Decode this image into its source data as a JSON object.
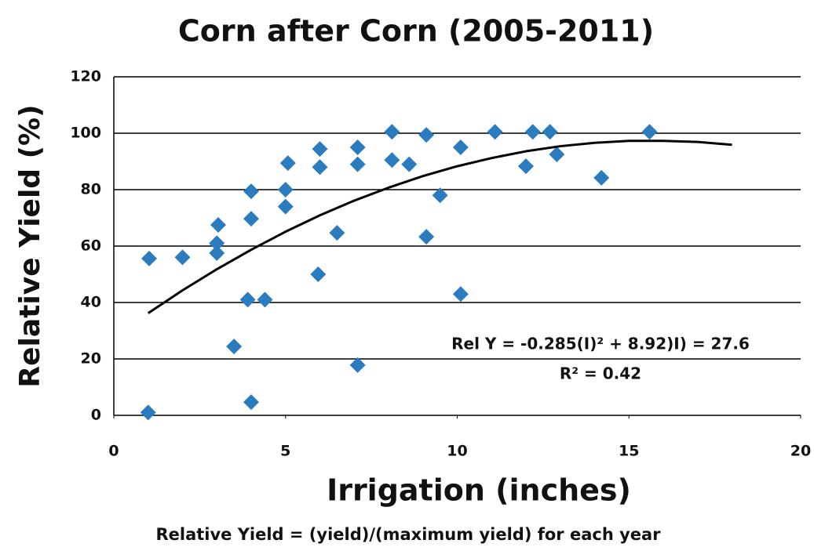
{
  "chart_data": {
    "type": "scatter",
    "title": "Corn after Corn (2005-2011)",
    "xlabel": "Irrigation (inches)",
    "ylabel": "Relative Yield (%)",
    "footnote": "Relative Yield = (yield)/(maximum yield) for each year",
    "annotations": [
      "Rel Y = -0.285(I)² + 8.92)I) = 27.6",
      "R² = 0.42"
    ],
    "xlim": [
      0,
      20
    ],
    "xticks": [
      0,
      5,
      10,
      15,
      20
    ],
    "ylim": [
      0,
      120
    ],
    "yticks": [
      0,
      20,
      40,
      60,
      80,
      100,
      120
    ],
    "grid": true,
    "series": [
      {
        "type": "scatter",
        "color": "#2b7bbf",
        "x": [
          1.03,
          1,
          2,
          3.04,
          3,
          3,
          3.5,
          4,
          4,
          3.9,
          4.4,
          4,
          5.07,
          5,
          5,
          6,
          6,
          5.95,
          6.5,
          7.1,
          7.1,
          7.1,
          8.1,
          8.1,
          8.6,
          9.1,
          9.1,
          9.5,
          10.1,
          10.1,
          11.1,
          12.2,
          12.7,
          12,
          12.9,
          14.2,
          15.6
        ],
        "values": [
          55.6,
          1,
          56,
          67.5,
          61,
          57.5,
          24.4,
          79.4,
          69.7,
          41,
          41,
          4.7,
          89.4,
          80,
          74,
          94.4,
          88,
          50,
          64.7,
          95,
          89,
          17.8,
          100.5,
          90.5,
          89,
          99.4,
          63.3,
          78,
          95,
          43,
          100.5,
          100.5,
          100.5,
          88.3,
          92.5,
          84.2,
          100.5
        ]
      },
      {
        "type": "line",
        "color": "#000000",
        "x": [
          1,
          2,
          3,
          4,
          5,
          6,
          7,
          8,
          9,
          10,
          11,
          12,
          13,
          14,
          15,
          16,
          17,
          18
        ],
        "values": [
          36.2,
          44.3,
          51.8,
          58.7,
          65.1,
          70.9,
          76.1,
          80.7,
          84.8,
          88.3,
          91.2,
          93.6,
          95.4,
          96.6,
          97.3,
          97.3,
          96.9,
          95.9
        ]
      }
    ]
  }
}
